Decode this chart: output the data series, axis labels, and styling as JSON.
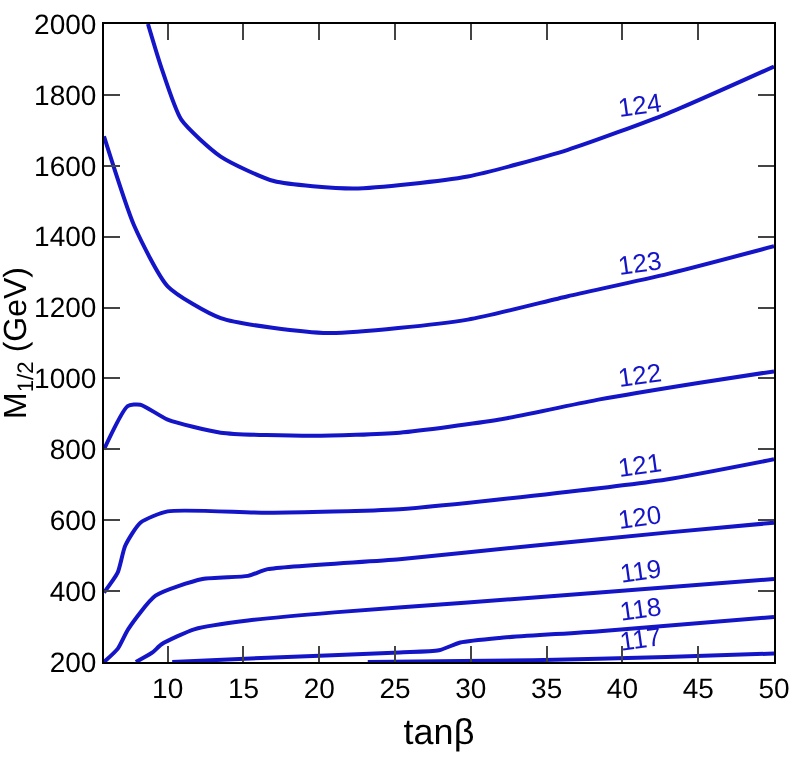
{
  "chart_data": {
    "type": "line",
    "xlabel": "tanβ",
    "ylabel": "M$_{1/2}$ (GeV)",
    "xlim": [
      5.8,
      50
    ],
    "ylim": [
      200,
      2000
    ],
    "xticks": [
      10,
      15,
      20,
      25,
      30,
      35,
      40,
      45,
      50
    ],
    "yticks": [
      200,
      400,
      600,
      800,
      1000,
      1200,
      1400,
      1600,
      1800,
      2000
    ],
    "grid": false,
    "legend": false,
    "marker": "none",
    "line_style": "solid",
    "series": [
      {
        "name": "124",
        "color": "#1515c8",
        "x": [
          8.7,
          9.56,
          10.9,
          13.5,
          17.0,
          22.3,
          29.8,
          36.4,
          43,
          50
        ],
        "values": [
          2000,
          1880,
          1730,
          1626,
          1557,
          1536,
          1570,
          1645,
          1748,
          1880
        ]
      },
      {
        "name": "123",
        "color": "#1515c8",
        "x": [
          5.8,
          7.8,
          10,
          13.5,
          20.6,
          29.8,
          36.4,
          43,
          50
        ],
        "values": [
          1683,
          1430,
          1260,
          1170,
          1128,
          1166,
          1232,
          1295,
          1373
        ]
      },
      {
        "name": "122",
        "color": "#1515c8",
        "x": [
          5.8,
          7.36,
          8.2,
          10,
          13.5,
          19.6,
          25.3,
          31.9,
          38.5,
          45.1,
          50
        ],
        "values": [
          800,
          922,
          926,
          884,
          847,
          838,
          847,
          884,
          941,
          988,
          1020
        ]
      },
      {
        "name": "121",
        "color": "#1515c8",
        "x": [
          5.8,
          6.7,
          7.2,
          8.2,
          10,
          16.6,
          25.3,
          34.1,
          42.9,
          50
        ],
        "values": [
          396,
          452,
          528,
          593,
          625,
          621,
          631,
          669,
          715,
          772
        ]
      },
      {
        "name": "120",
        "color": "#1515c8",
        "x": [
          5.8,
          6.7,
          7.4,
          9.2,
          12.3,
          15.3,
          16.6,
          25.3,
          34.1,
          42.9,
          50
        ],
        "values": [
          200,
          237,
          293,
          387,
          434,
          443,
          462,
          490,
          528,
          565,
          593
        ]
      },
      {
        "name": "119",
        "color": "#1515c8",
        "x": [
          7.9,
          9,
          9.6,
          11.8,
          15.3,
          21,
          29.8,
          38.5,
          50
        ],
        "values": [
          200,
          227,
          250,
          293,
          317,
          340,
          368,
          396,
          434
        ]
      },
      {
        "name": "118",
        "color": "#1515c8",
        "x": [
          10.3,
          16.6,
          25.3,
          27.9,
          29.3,
          31.9,
          38.5,
          50
        ],
        "values": [
          200,
          212,
          227,
          233,
          255,
          268,
          287,
          327
        ]
      },
      {
        "name": "117",
        "color": "#1515c8",
        "x": [
          23.2,
          34.1,
          42.9,
          50
        ],
        "values": [
          200,
          205,
          214,
          224
        ]
      }
    ]
  }
}
